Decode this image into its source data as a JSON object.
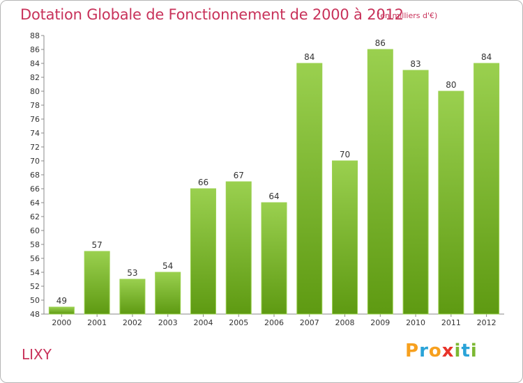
{
  "header": {
    "title": "Dotation Globale de Fonctionnement de 2000 à 2012",
    "unit": "(en milliers d'€)"
  },
  "footer": {
    "commune": "LIXY",
    "logo_letters": [
      "P",
      "r",
      "o",
      "x",
      "i",
      "t",
      "i"
    ],
    "logo_colors": [
      "#f7a01e",
      "#2aa3d8",
      "#f7a01e",
      "#e8332a",
      "#7cb832",
      "#2aa3d8",
      "#7cb832"
    ]
  },
  "colors": {
    "bar_light": "#9ad04f",
    "bar_dark": "#5e9a12",
    "title": "#c8325a"
  },
  "chart_data": {
    "type": "bar",
    "title": "Dotation Globale de Fonctionnement de 2000 à 2012",
    "xlabel": "",
    "ylabel": "(en milliers d'€)",
    "categories": [
      "2000",
      "2001",
      "2002",
      "2003",
      "2004",
      "2005",
      "2006",
      "2007",
      "2008",
      "2009",
      "2010",
      "2011",
      "2012"
    ],
    "values": [
      49,
      57,
      53,
      54,
      66,
      67,
      64,
      84,
      70,
      86,
      83,
      80,
      84
    ],
    "ylim": [
      48,
      88
    ],
    "yticks": [
      48,
      50,
      52,
      54,
      56,
      58,
      60,
      62,
      64,
      66,
      68,
      70,
      72,
      74,
      76,
      78,
      80,
      82,
      84,
      86,
      88
    ],
    "grid": false
  }
}
